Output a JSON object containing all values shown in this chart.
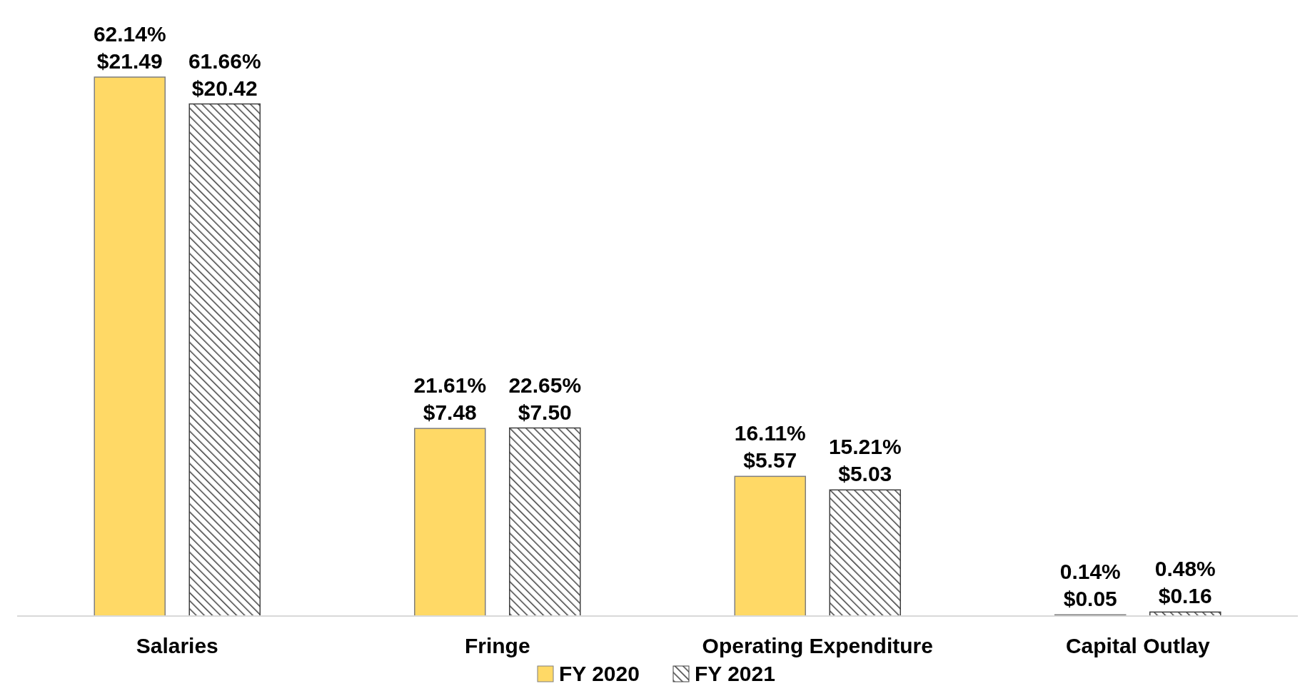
{
  "chart_data": {
    "type": "bar",
    "categories": [
      "Salaries",
      "Fringe",
      "Operating Expenditure",
      "Capital Outlay"
    ],
    "series": [
      {
        "name": "FY 2020",
        "color": "#ffd966",
        "values": [
          21.49,
          7.48,
          5.57,
          0.05
        ],
        "value_labels": [
          "62.14%\n$21.49",
          "21.61%\n$7.48",
          "16.11%\n$5.57",
          "0.14%\n$0.05"
        ]
      },
      {
        "name": "FY 2021",
        "color": "#404040",
        "values": [
          20.42,
          7.5,
          5.03,
          0.16
        ],
        "value_labels": [
          "61.66%\n$20.42",
          "22.65%\n$7.50",
          "15.21%\n$5.03",
          "0.48%\n$0.16"
        ]
      }
    ],
    "legend": "bottom",
    "grid": false
  }
}
